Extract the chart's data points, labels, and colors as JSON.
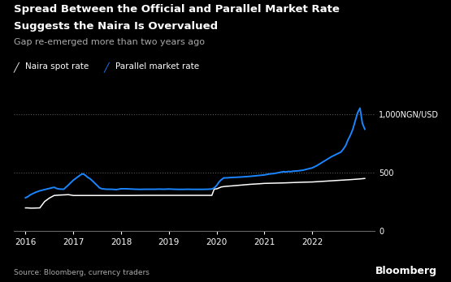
{
  "title_line1": "Spread Between the Official and Parallel Market Rate",
  "title_line2": "Suggests the Naira Is Overvalued",
  "subtitle": "Gap re-emerged more than two years ago",
  "source": "Source: Bloomberg, currency traders",
  "watermark": "Bloomberg",
  "background_color": "#000000",
  "text_color": "#ffffff",
  "subtitle_color": "#aaaaaa",
  "legend_naira": "Naira spot rate",
  "legend_parallel": "Parallel market rate",
  "naira_color": "#ffffff",
  "parallel_color": "#1a85ff",
  "yticks": [
    0,
    500,
    1000
  ],
  "ylim": [
    0,
    1130
  ],
  "xlim_start": 2015.75,
  "xlim_end": 2023.3,
  "xtick_labels": [
    "2016",
    "2017",
    "2018",
    "2019",
    "2020",
    "2021",
    "2022"
  ],
  "xtick_positions": [
    2016,
    2017,
    2018,
    2019,
    2020,
    2021,
    2022
  ],
  "dotted_line_color": "#555555",
  "naira_data": [
    [
      2016.0,
      199
    ],
    [
      2016.05,
      199
    ],
    [
      2016.1,
      197
    ],
    [
      2016.15,
      197
    ],
    [
      2016.3,
      199
    ],
    [
      2016.4,
      253
    ],
    [
      2016.5,
      283
    ],
    [
      2016.6,
      305
    ],
    [
      2016.7,
      308
    ],
    [
      2016.8,
      310
    ],
    [
      2016.9,
      312
    ],
    [
      2017.0,
      305
    ],
    [
      2017.2,
      305
    ],
    [
      2017.5,
      305
    ],
    [
      2017.7,
      305
    ],
    [
      2017.9,
      305
    ],
    [
      2018.0,
      305
    ],
    [
      2018.2,
      305
    ],
    [
      2018.5,
      306
    ],
    [
      2018.8,
      306
    ],
    [
      2018.9,
      306
    ],
    [
      2019.0,
      306
    ],
    [
      2019.2,
      306
    ],
    [
      2019.5,
      306
    ],
    [
      2019.7,
      306
    ],
    [
      2019.8,
      306
    ],
    [
      2019.9,
      306
    ],
    [
      2019.95,
      360
    ],
    [
      2020.0,
      361
    ],
    [
      2020.1,
      378
    ],
    [
      2020.2,
      383
    ],
    [
      2020.3,
      386
    ],
    [
      2020.5,
      393
    ],
    [
      2020.7,
      400
    ],
    [
      2020.9,
      405
    ],
    [
      2021.0,
      408
    ],
    [
      2021.2,
      410
    ],
    [
      2021.4,
      412
    ],
    [
      2021.6,
      415
    ],
    [
      2021.8,
      418
    ],
    [
      2022.0,
      420
    ],
    [
      2022.2,
      425
    ],
    [
      2022.4,
      430
    ],
    [
      2022.6,
      435
    ],
    [
      2022.8,
      440
    ],
    [
      2022.9,
      443
    ],
    [
      2023.0,
      446
    ],
    [
      2023.1,
      450
    ]
  ],
  "parallel_data": [
    [
      2016.0,
      285
    ],
    [
      2016.05,
      295
    ],
    [
      2016.1,
      310
    ],
    [
      2016.15,
      320
    ],
    [
      2016.2,
      330
    ],
    [
      2016.3,
      345
    ],
    [
      2016.4,
      355
    ],
    [
      2016.5,
      365
    ],
    [
      2016.6,
      375
    ],
    [
      2016.65,
      365
    ],
    [
      2016.7,
      360
    ],
    [
      2016.8,
      358
    ],
    [
      2016.9,
      395
    ],
    [
      2017.0,
      435
    ],
    [
      2017.05,
      450
    ],
    [
      2017.1,
      465
    ],
    [
      2017.15,
      480
    ],
    [
      2017.2,
      490
    ],
    [
      2017.25,
      478
    ],
    [
      2017.3,
      460
    ],
    [
      2017.35,
      448
    ],
    [
      2017.4,
      430
    ],
    [
      2017.5,
      390
    ],
    [
      2017.55,
      370
    ],
    [
      2017.6,
      362
    ],
    [
      2017.7,
      358
    ],
    [
      2017.8,
      358
    ],
    [
      2017.9,
      355
    ],
    [
      2018.0,
      362
    ],
    [
      2018.1,
      362
    ],
    [
      2018.2,
      360
    ],
    [
      2018.3,
      358
    ],
    [
      2018.4,
      357
    ],
    [
      2018.5,
      358
    ],
    [
      2018.6,
      358
    ],
    [
      2018.7,
      358
    ],
    [
      2018.8,
      359
    ],
    [
      2018.9,
      358
    ],
    [
      2019.0,
      360
    ],
    [
      2019.1,
      358
    ],
    [
      2019.2,
      357
    ],
    [
      2019.3,
      357
    ],
    [
      2019.4,
      358
    ],
    [
      2019.5,
      357
    ],
    [
      2019.6,
      357
    ],
    [
      2019.7,
      357
    ],
    [
      2019.8,
      358
    ],
    [
      2019.9,
      360
    ],
    [
      2019.95,
      370
    ],
    [
      2020.0,
      390
    ],
    [
      2020.05,
      420
    ],
    [
      2020.1,
      440
    ],
    [
      2020.15,
      455
    ],
    [
      2020.2,
      455
    ],
    [
      2020.3,
      458
    ],
    [
      2020.4,
      460
    ],
    [
      2020.5,
      462
    ],
    [
      2020.6,
      465
    ],
    [
      2020.7,
      468
    ],
    [
      2020.8,
      472
    ],
    [
      2020.9,
      476
    ],
    [
      2021.0,
      480
    ],
    [
      2021.1,
      488
    ],
    [
      2021.2,
      492
    ],
    [
      2021.3,
      500
    ],
    [
      2021.4,
      508
    ],
    [
      2021.45,
      505
    ],
    [
      2021.5,
      510
    ],
    [
      2021.55,
      508
    ],
    [
      2021.6,
      512
    ],
    [
      2021.7,
      515
    ],
    [
      2021.8,
      520
    ],
    [
      2021.9,
      530
    ],
    [
      2022.0,
      540
    ],
    [
      2022.1,
      560
    ],
    [
      2022.2,
      585
    ],
    [
      2022.3,
      610
    ],
    [
      2022.4,
      635
    ],
    [
      2022.5,
      655
    ],
    [
      2022.6,
      675
    ],
    [
      2022.65,
      700
    ],
    [
      2022.7,
      730
    ],
    [
      2022.75,
      780
    ],
    [
      2022.8,
      820
    ],
    [
      2022.85,
      870
    ],
    [
      2022.9,
      940
    ],
    [
      2022.95,
      1010
    ],
    [
      2023.0,
      1050
    ],
    [
      2023.05,
      920
    ],
    [
      2023.1,
      870
    ]
  ]
}
